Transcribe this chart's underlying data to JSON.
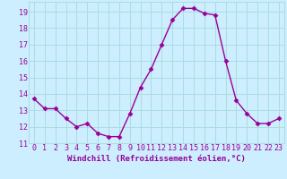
{
  "x": [
    0,
    1,
    2,
    3,
    4,
    5,
    6,
    7,
    8,
    9,
    10,
    11,
    12,
    13,
    14,
    15,
    16,
    17,
    18,
    19,
    20,
    21,
    22,
    23
  ],
  "y": [
    13.7,
    13.1,
    13.1,
    12.5,
    12.0,
    12.2,
    11.6,
    11.4,
    11.4,
    12.8,
    14.4,
    15.5,
    17.0,
    18.5,
    19.2,
    19.2,
    18.9,
    18.8,
    16.0,
    13.6,
    12.8,
    12.2,
    12.2,
    12.5
  ],
  "line_color": "#990099",
  "marker": "D",
  "markersize": 2.5,
  "linewidth": 1.0,
  "background_color": "#cceeff",
  "grid_color": "#aadddd",
  "xlabel": "Windchill (Refroidissement éolien,°C)",
  "xlabel_fontsize": 6.5,
  "ylabel_ticks": [
    11,
    12,
    13,
    14,
    15,
    16,
    17,
    18,
    19
  ],
  "xlim": [
    -0.5,
    23.5
  ],
  "ylim": [
    11,
    19.6
  ],
  "tick_fontsize": 6.0
}
